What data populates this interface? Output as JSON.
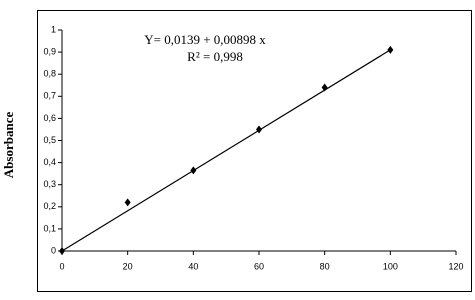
{
  "chart_data": {
    "type": "scatter",
    "y_label": "Absorbance",
    "annotations": [
      "Y= 0,0139 + 0,00898 x",
      "R² = 0,998"
    ],
    "x": [
      0,
      20,
      40,
      60,
      80,
      100
    ],
    "values": [
      0,
      0.22,
      0.365,
      0.55,
      0.74,
      0.91
    ],
    "color": "#000000",
    "trendline": {
      "x": [
        0,
        100
      ],
      "values": [
        0,
        0.91
      ]
    },
    "xlim": [
      0,
      120
    ],
    "xticks": [
      0,
      20,
      40,
      60,
      80,
      100,
      120
    ],
    "ylim": [
      0,
      1
    ],
    "yticks": [
      0,
      {
        "value": 0.1,
        "label": "0,1"
      },
      {
        "value": 0.2,
        "label": "0,2"
      },
      {
        "value": 0.3,
        "label": "0,3"
      },
      {
        "value": 0.4,
        "label": "0,4"
      },
      {
        "value": 0.5,
        "label": "0,5"
      },
      {
        "value": 0.6,
        "label": "0,6"
      },
      {
        "value": 0.7,
        "label": "0,7"
      },
      {
        "value": 0.8,
        "label": "0,8"
      },
      {
        "value": 0.9,
        "label": "0,9"
      },
      1
    ],
    "grid": false
  }
}
